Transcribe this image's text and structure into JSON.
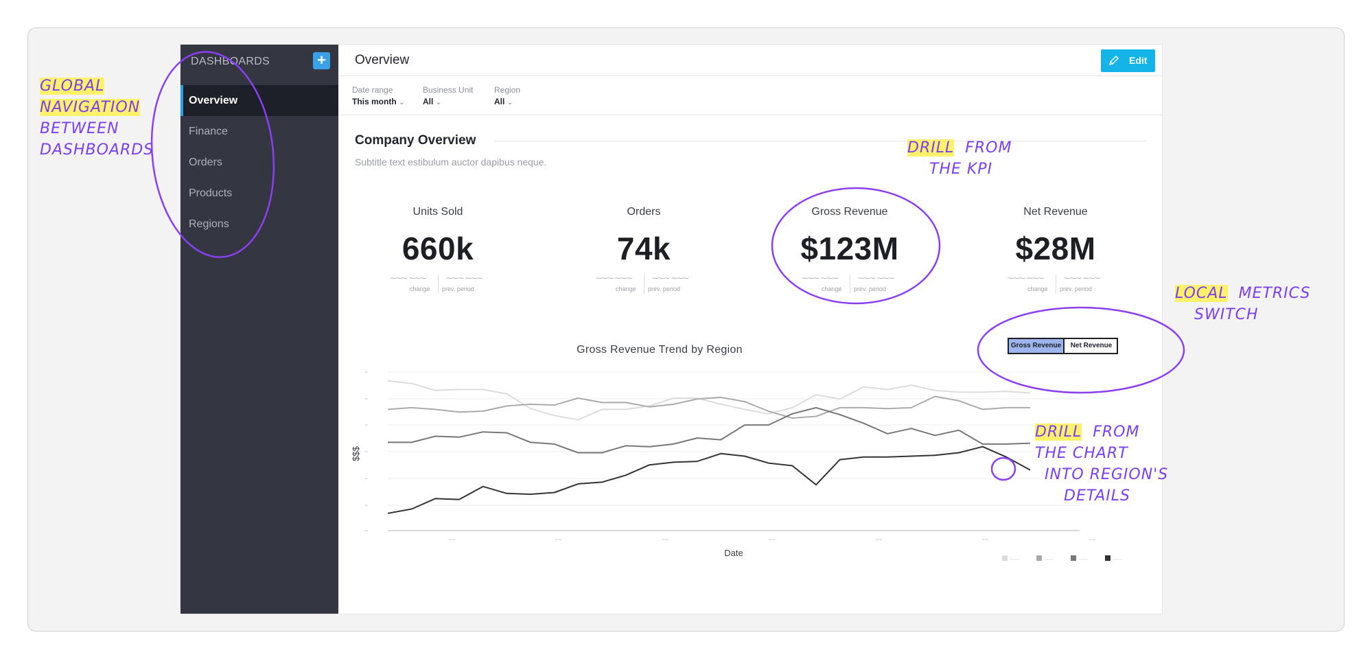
{
  "sidebar": {
    "title": "DASHBOARDS",
    "add_label": "+",
    "items": [
      {
        "label": "Overview",
        "active": true
      },
      {
        "label": "Finance"
      },
      {
        "label": "Orders"
      },
      {
        "label": "Products"
      },
      {
        "label": "Regions"
      }
    ]
  },
  "header": {
    "title": "Overview",
    "edit_label": "Edit"
  },
  "filters": [
    {
      "label": "Date range",
      "value": "This month"
    },
    {
      "label": "Business Unit",
      "value": "All"
    },
    {
      "label": "Region",
      "value": "All"
    }
  ],
  "section": {
    "title": "Company Overview",
    "subtitle": "Subtitle text estibulum auctor dapibus neque."
  },
  "kpis": [
    {
      "title": "Units Sold",
      "value": "660k",
      "change_label": "change",
      "prev_label": "prev. period"
    },
    {
      "title": "Orders",
      "value": "74k",
      "change_label": "change",
      "prev_label": "prev. period"
    },
    {
      "title": "Gross Revenue",
      "value": "$123M",
      "change_label": "change",
      "prev_label": "prev. period"
    },
    {
      "title": "Net Revenue",
      "value": "$28M",
      "change_label": "change",
      "prev_label": "prev. period"
    }
  ],
  "switch": {
    "options": [
      "Gross Revenue",
      "Net Revenue"
    ],
    "selected": "Gross Revenue"
  },
  "chart_data": {
    "type": "line",
    "title": "Gross Revenue Trend by Region",
    "xlabel": "Date",
    "ylabel": "$$$",
    "grid": true,
    "legend": "bottom-right",
    "series": [
      {
        "color": "#dcdcdc",
        "values": [
          93,
          90,
          82,
          83,
          83,
          78,
          61,
          53,
          48,
          60,
          60,
          64,
          73,
          73,
          66,
          60,
          55,
          62,
          77,
          72,
          86,
          83,
          88,
          82,
          80,
          80,
          81,
          79
        ]
      },
      {
        "color": "#aaaaaa",
        "values": [
          60,
          62,
          60,
          57,
          58,
          64,
          66,
          65,
          73,
          68,
          68,
          63,
          66,
          72,
          74,
          69,
          58,
          50,
          52,
          62,
          62,
          61,
          62,
          75,
          70,
          60,
          62,
          62
        ]
      },
      {
        "color": "#777777",
        "values": [
          22,
          22,
          29,
          28,
          34,
          33,
          22,
          20,
          10,
          10,
          18,
          17,
          20,
          27,
          25,
          42,
          42,
          55,
          62,
          54,
          44,
          32,
          38,
          30,
          36,
          20,
          20,
          21
        ]
      },
      {
        "color": "#333333",
        "values": [
          -60,
          -55,
          -43,
          -44,
          -29,
          -37,
          -38,
          -36,
          -26,
          -24,
          -16,
          -4,
          -1,
          0,
          9,
          6,
          -2,
          -5,
          -27,
          2,
          5,
          5,
          6,
          7,
          10,
          17,
          5,
          -10
        ]
      }
    ]
  },
  "annotations": {
    "global_nav": [
      "GLOBAL",
      "NAVIGATION",
      "BETWEEN",
      "DASHBOARDS"
    ],
    "drill_kpi": [
      "DRILL",
      "FROM",
      "THE KPI"
    ],
    "local_switch": [
      "LOCAL",
      "METRICS",
      "SWITCH"
    ],
    "drill_chart": [
      "DRILL",
      "FROM",
      "THE CHART",
      "INTO REGION'S",
      "DETAILS"
    ]
  }
}
